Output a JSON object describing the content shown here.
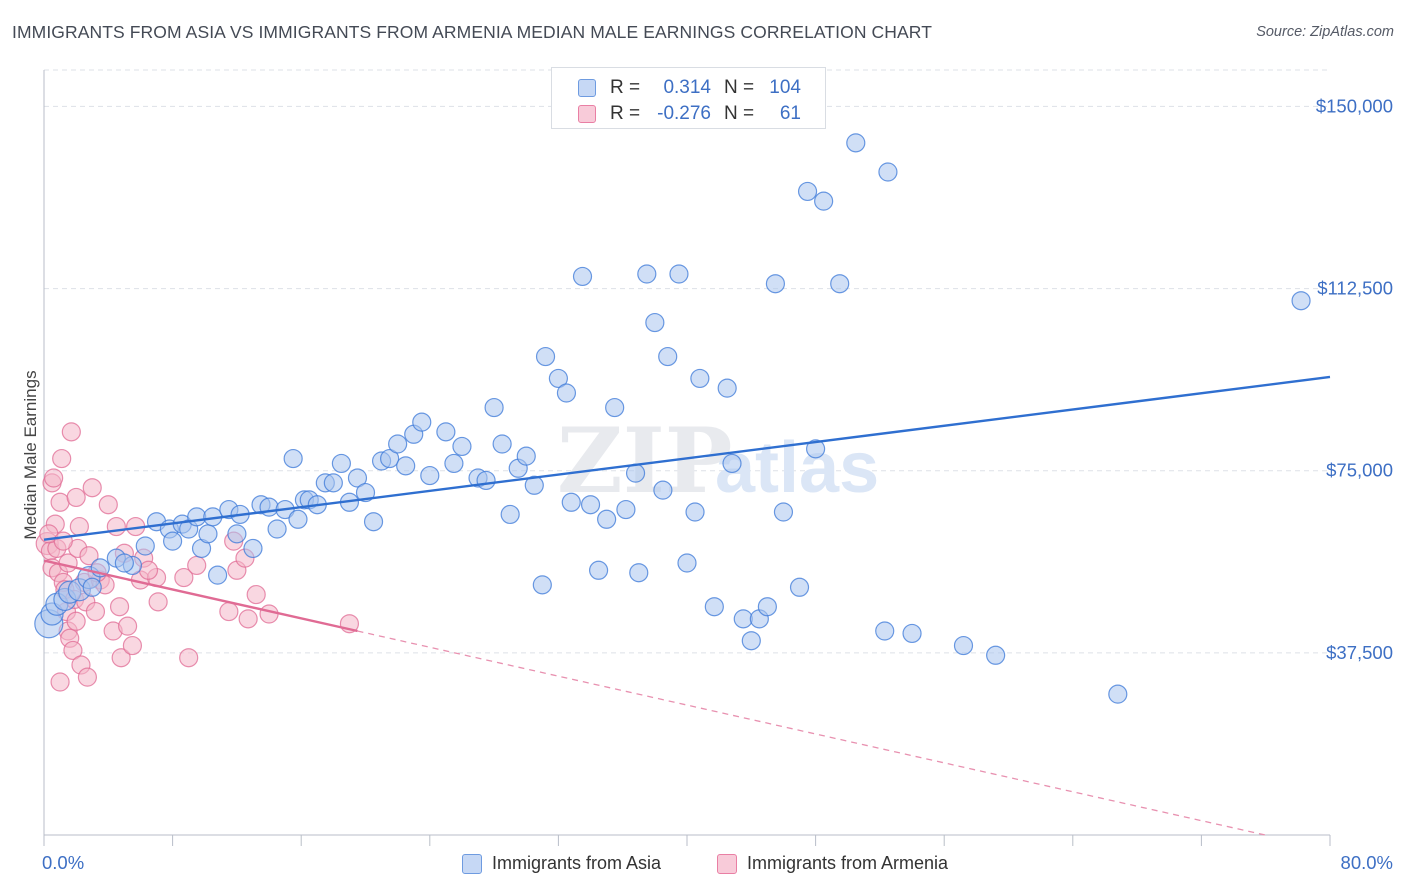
{
  "title": "IMMIGRANTS FROM ASIA VS IMMIGRANTS FROM ARMENIA MEDIAN MALE EARNINGS CORRELATION CHART",
  "source": "Source: ZipAtlas.com",
  "watermark": {
    "zip": "ZIP",
    "atlas": "atlas"
  },
  "legend_stats": [
    {
      "r_label": "R =",
      "r_value": "0.314",
      "n_label": "N =",
      "n_value": "104",
      "color": "#6e9be0",
      "fill": "#c6d8f5"
    },
    {
      "r_label": "R =",
      "r_value": "-0.276",
      "n_label": "N =",
      "n_value": "61",
      "color": "#e97fa4",
      "fill": "#f8cbd9"
    }
  ],
  "chart_data": {
    "type": "scatter",
    "title": "IMMIGRANTS FROM ASIA VS IMMIGRANTS FROM ARMENIA MEDIAN MALE EARNINGS CORRELATION CHART",
    "xlabel": "",
    "ylabel": "Median Male Earnings",
    "xlim": [
      0,
      80
    ],
    "ylim": [
      0,
      157500
    ],
    "x_tick_labels": [
      "0.0%",
      "80.0%"
    ],
    "y_ticks": [
      {
        "value": 37500,
        "label": "$37,500"
      },
      {
        "value": 75000,
        "label": "$75,000"
      },
      {
        "value": 112500,
        "label": "$112,500"
      },
      {
        "value": 150000,
        "label": "$150,000"
      }
    ],
    "grid": true,
    "legend_position": "bottom",
    "series": [
      {
        "name": "Immigrants from Asia",
        "color": "#3b78d8",
        "fill": "#a9c4ee",
        "trend": {
          "x": [
            0,
            80
          ],
          "y": [
            60800,
            94300
          ],
          "dashed_from": null
        },
        "points": [
          {
            "x": 0.3,
            "y": 43500,
            "s": 3
          },
          {
            "x": 0.5,
            "y": 45500,
            "s": 2
          },
          {
            "x": 0.8,
            "y": 47500,
            "s": 2
          },
          {
            "x": 1.3,
            "y": 48500,
            "s": 2
          },
          {
            "x": 1.6,
            "y": 50000,
            "s": 2
          },
          {
            "x": 2.2,
            "y": 50500,
            "s": 2
          },
          {
            "x": 2.8,
            "y": 53000,
            "s": 2
          },
          {
            "x": 3.5,
            "y": 55000,
            "s": 1
          },
          {
            "x": 4.5,
            "y": 57000,
            "s": 1
          },
          {
            "x": 5.5,
            "y": 55500,
            "s": 1
          },
          {
            "x": 6.3,
            "y": 59500,
            "s": 1
          },
          {
            "x": 7.0,
            "y": 64500,
            "s": 1
          },
          {
            "x": 7.8,
            "y": 63000,
            "s": 1
          },
          {
            "x": 8.0,
            "y": 60500,
            "s": 1
          },
          {
            "x": 8.6,
            "y": 64000,
            "s": 1
          },
          {
            "x": 9.0,
            "y": 63000,
            "s": 1
          },
          {
            "x": 9.5,
            "y": 65500,
            "s": 1
          },
          {
            "x": 9.8,
            "y": 59000,
            "s": 1
          },
          {
            "x": 10.2,
            "y": 62000,
            "s": 1
          },
          {
            "x": 10.5,
            "y": 65500,
            "s": 1
          },
          {
            "x": 10.8,
            "y": 53500,
            "s": 1
          },
          {
            "x": 11.5,
            "y": 67000,
            "s": 1
          },
          {
            "x": 12.0,
            "y": 62000,
            "s": 1
          },
          {
            "x": 12.2,
            "y": 66000,
            "s": 1
          },
          {
            "x": 13.0,
            "y": 59000,
            "s": 1
          },
          {
            "x": 13.5,
            "y": 68000,
            "s": 1
          },
          {
            "x": 14.0,
            "y": 67500,
            "s": 1
          },
          {
            "x": 14.5,
            "y": 63000,
            "s": 1
          },
          {
            "x": 15.0,
            "y": 67000,
            "s": 1
          },
          {
            "x": 15.5,
            "y": 77500,
            "s": 1
          },
          {
            "x": 15.8,
            "y": 65000,
            "s": 1
          },
          {
            "x": 16.2,
            "y": 69000,
            "s": 1
          },
          {
            "x": 16.5,
            "y": 69000,
            "s": 1
          },
          {
            "x": 17.0,
            "y": 68000,
            "s": 1
          },
          {
            "x": 17.5,
            "y": 72500,
            "s": 1
          },
          {
            "x": 18.0,
            "y": 72500,
            "s": 1
          },
          {
            "x": 18.5,
            "y": 76500,
            "s": 1
          },
          {
            "x": 19.0,
            "y": 68500,
            "s": 1
          },
          {
            "x": 19.5,
            "y": 73500,
            "s": 1
          },
          {
            "x": 20.0,
            "y": 70500,
            "s": 1
          },
          {
            "x": 20.5,
            "y": 64500,
            "s": 1
          },
          {
            "x": 21.0,
            "y": 77000,
            "s": 1
          },
          {
            "x": 21.5,
            "y": 77500,
            "s": 1
          },
          {
            "x": 22.0,
            "y": 80500,
            "s": 1
          },
          {
            "x": 22.5,
            "y": 76000,
            "s": 1
          },
          {
            "x": 23.0,
            "y": 82500,
            "s": 1
          },
          {
            "x": 23.5,
            "y": 85000,
            "s": 1
          },
          {
            "x": 24.0,
            "y": 74000,
            "s": 1
          },
          {
            "x": 25.0,
            "y": 83000,
            "s": 1
          },
          {
            "x": 25.5,
            "y": 76500,
            "s": 1
          },
          {
            "x": 26.0,
            "y": 80000,
            "s": 1
          },
          {
            "x": 27.0,
            "y": 73500,
            "s": 1
          },
          {
            "x": 27.5,
            "y": 73000,
            "s": 1
          },
          {
            "x": 28.0,
            "y": 88000,
            "s": 1
          },
          {
            "x": 28.5,
            "y": 80500,
            "s": 1
          },
          {
            "x": 29.0,
            "y": 66000,
            "s": 1
          },
          {
            "x": 29.5,
            "y": 75500,
            "s": 1
          },
          {
            "x": 30.0,
            "y": 78000,
            "s": 1
          },
          {
            "x": 30.5,
            "y": 72000,
            "s": 1
          },
          {
            "x": 31.0,
            "y": 51500,
            "s": 1
          },
          {
            "x": 31.2,
            "y": 98500,
            "s": 1
          },
          {
            "x": 32.0,
            "y": 94000,
            "s": 1
          },
          {
            "x": 32.5,
            "y": 91000,
            "s": 1
          },
          {
            "x": 32.8,
            "y": 68500,
            "s": 1
          },
          {
            "x": 33.5,
            "y": 115000,
            "s": 1
          },
          {
            "x": 34.0,
            "y": 68000,
            "s": 1
          },
          {
            "x": 34.5,
            "y": 54500,
            "s": 1
          },
          {
            "x": 35.0,
            "y": 65000,
            "s": 1
          },
          {
            "x": 35.5,
            "y": 88000,
            "s": 1
          },
          {
            "x": 36.2,
            "y": 67000,
            "s": 1
          },
          {
            "x": 36.8,
            "y": 74500,
            "s": 1
          },
          {
            "x": 37.0,
            "y": 54000,
            "s": 1
          },
          {
            "x": 37.5,
            "y": 115500,
            "s": 1
          },
          {
            "x": 38.0,
            "y": 105500,
            "s": 1
          },
          {
            "x": 38.5,
            "y": 71000,
            "s": 1
          },
          {
            "x": 38.8,
            "y": 98500,
            "s": 1
          },
          {
            "x": 39.5,
            "y": 115500,
            "s": 1
          },
          {
            "x": 40.0,
            "y": 56000,
            "s": 1
          },
          {
            "x": 40.5,
            "y": 66500,
            "s": 1
          },
          {
            "x": 40.8,
            "y": 94000,
            "s": 1
          },
          {
            "x": 41.7,
            "y": 47000,
            "s": 1
          },
          {
            "x": 42.5,
            "y": 92000,
            "s": 1
          },
          {
            "x": 42.8,
            "y": 76500,
            "s": 1
          },
          {
            "x": 43.5,
            "y": 44500,
            "s": 1
          },
          {
            "x": 44.0,
            "y": 40000,
            "s": 1
          },
          {
            "x": 44.5,
            "y": 44500,
            "s": 1
          },
          {
            "x": 45.0,
            "y": 47000,
            "s": 1
          },
          {
            "x": 45.5,
            "y": 113500,
            "s": 1
          },
          {
            "x": 46.0,
            "y": 66500,
            "s": 1
          },
          {
            "x": 47.0,
            "y": 51000,
            "s": 1
          },
          {
            "x": 47.5,
            "y": 132500,
            "s": 1
          },
          {
            "x": 48.0,
            "y": 79500,
            "s": 1
          },
          {
            "x": 48.5,
            "y": 130500,
            "s": 1
          },
          {
            "x": 49.5,
            "y": 113500,
            "s": 1
          },
          {
            "x": 50.5,
            "y": 142500,
            "s": 1
          },
          {
            "x": 52.5,
            "y": 136500,
            "s": 1
          },
          {
            "x": 52.3,
            "y": 42000,
            "s": 1
          },
          {
            "x": 54.0,
            "y": 41500,
            "s": 1
          },
          {
            "x": 57.2,
            "y": 39000,
            "s": 1
          },
          {
            "x": 59.2,
            "y": 37000,
            "s": 1
          },
          {
            "x": 66.8,
            "y": 29000,
            "s": 1
          },
          {
            "x": 78.2,
            "y": 110000,
            "s": 1
          },
          {
            "x": 3.0,
            "y": 51000,
            "s": 1
          },
          {
            "x": 5.0,
            "y": 56000,
            "s": 1
          }
        ]
      },
      {
        "name": "Immigrants from Armenia",
        "color": "#e06b94",
        "fill": "#f4b6c9",
        "trend": {
          "x": [
            0,
            80
          ],
          "y": [
            56500,
            -3000
          ],
          "solid_until_x": 19.5
        },
        "points": [
          {
            "x": 0.2,
            "y": 60000,
            "s": 2
          },
          {
            "x": 0.4,
            "y": 58500,
            "s": 1
          },
          {
            "x": 0.5,
            "y": 72500,
            "s": 1
          },
          {
            "x": 0.5,
            "y": 55000,
            "s": 1
          },
          {
            "x": 0.6,
            "y": 73500,
            "s": 1
          },
          {
            "x": 0.7,
            "y": 64000,
            "s": 1
          },
          {
            "x": 0.8,
            "y": 59000,
            "s": 1
          },
          {
            "x": 0.9,
            "y": 54000,
            "s": 1
          },
          {
            "x": 1.0,
            "y": 68500,
            "s": 1
          },
          {
            "x": 1.0,
            "y": 31500,
            "s": 1
          },
          {
            "x": 1.1,
            "y": 77500,
            "s": 1
          },
          {
            "x": 1.2,
            "y": 52000,
            "s": 1
          },
          {
            "x": 1.3,
            "y": 50500,
            "s": 1
          },
          {
            "x": 1.4,
            "y": 46000,
            "s": 1
          },
          {
            "x": 1.5,
            "y": 42000,
            "s": 1
          },
          {
            "x": 1.5,
            "y": 56000,
            "s": 1
          },
          {
            "x": 1.6,
            "y": 40500,
            "s": 1
          },
          {
            "x": 1.7,
            "y": 83000,
            "s": 1
          },
          {
            "x": 1.8,
            "y": 38000,
            "s": 1
          },
          {
            "x": 1.9,
            "y": 48500,
            "s": 1
          },
          {
            "x": 2.0,
            "y": 69500,
            "s": 1
          },
          {
            "x": 2.1,
            "y": 59000,
            "s": 1
          },
          {
            "x": 2.2,
            "y": 63500,
            "s": 1
          },
          {
            "x": 2.3,
            "y": 35000,
            "s": 1
          },
          {
            "x": 2.5,
            "y": 52000,
            "s": 1
          },
          {
            "x": 2.6,
            "y": 48000,
            "s": 1
          },
          {
            "x": 2.7,
            "y": 32500,
            "s": 1
          },
          {
            "x": 2.8,
            "y": 57500,
            "s": 1
          },
          {
            "x": 3.0,
            "y": 71500,
            "s": 1
          },
          {
            "x": 3.2,
            "y": 46000,
            "s": 1
          },
          {
            "x": 3.5,
            "y": 52500,
            "s": 1
          },
          {
            "x": 3.8,
            "y": 51500,
            "s": 1
          },
          {
            "x": 4.0,
            "y": 68000,
            "s": 1
          },
          {
            "x": 4.3,
            "y": 42000,
            "s": 1
          },
          {
            "x": 4.5,
            "y": 63500,
            "s": 1
          },
          {
            "x": 4.7,
            "y": 47000,
            "s": 1
          },
          {
            "x": 4.8,
            "y": 36500,
            "s": 1
          },
          {
            "x": 5.0,
            "y": 58000,
            "s": 1
          },
          {
            "x": 5.2,
            "y": 43000,
            "s": 1
          },
          {
            "x": 5.5,
            "y": 39000,
            "s": 1
          },
          {
            "x": 5.7,
            "y": 63500,
            "s": 1
          },
          {
            "x": 6.0,
            "y": 52500,
            "s": 1
          },
          {
            "x": 6.2,
            "y": 57000,
            "s": 1
          },
          {
            "x": 7.0,
            "y": 53000,
            "s": 1
          },
          {
            "x": 7.1,
            "y": 48000,
            "s": 1
          },
          {
            "x": 8.7,
            "y": 53000,
            "s": 1
          },
          {
            "x": 9.0,
            "y": 36500,
            "s": 1
          },
          {
            "x": 9.5,
            "y": 55500,
            "s": 1
          },
          {
            "x": 11.5,
            "y": 46000,
            "s": 1
          },
          {
            "x": 11.8,
            "y": 60500,
            "s": 1
          },
          {
            "x": 12.0,
            "y": 54500,
            "s": 1
          },
          {
            "x": 12.5,
            "y": 57000,
            "s": 1
          },
          {
            "x": 12.7,
            "y": 44500,
            "s": 1
          },
          {
            "x": 13.2,
            "y": 49500,
            "s": 1
          },
          {
            "x": 14.0,
            "y": 45500,
            "s": 1
          },
          {
            "x": 19.0,
            "y": 43500,
            "s": 1
          },
          {
            "x": 0.3,
            "y": 62000,
            "s": 1
          },
          {
            "x": 1.2,
            "y": 60500,
            "s": 1
          },
          {
            "x": 2.0,
            "y": 44000,
            "s": 1
          },
          {
            "x": 3.3,
            "y": 54000,
            "s": 1
          },
          {
            "x": 6.5,
            "y": 54500,
            "s": 1
          }
        ]
      }
    ]
  }
}
